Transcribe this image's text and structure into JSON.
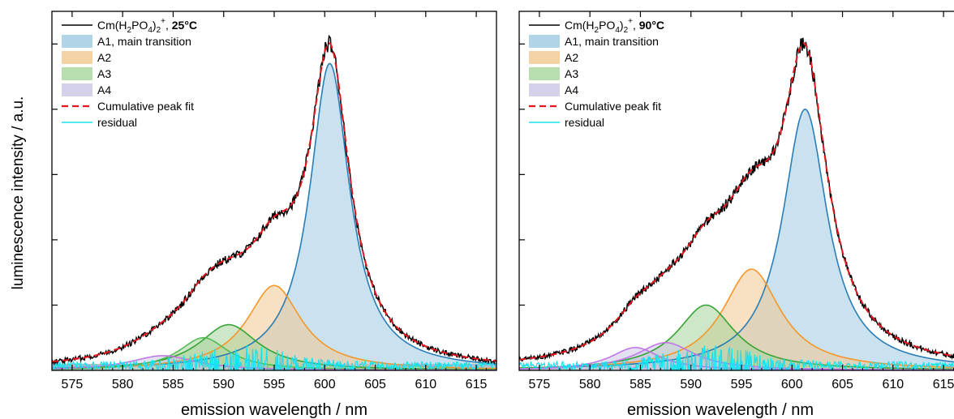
{
  "figure": {
    "ylabel": "luminescence intensity / a.u."
  },
  "chart_data": [
    {
      "type": "line",
      "title": "Cm(H₂PO₄)₂⁺, 25°C",
      "legend": {
        "placement": "top-left",
        "entries": [
          {
            "key": "meas",
            "label_html": [
              "Cm(H",
              "2",
              "PO",
              "4",
              ")",
              "2",
              "+",
              ", ",
              "25°C"
            ],
            "style": "line",
            "color": "#000000"
          },
          {
            "key": "A1",
            "label": "A1, main transition",
            "style": "patch",
            "color": "#9ecae1"
          },
          {
            "key": "A2",
            "label": "A2",
            "style": "patch",
            "color": "#f0c890"
          },
          {
            "key": "A3",
            "label": "A3",
            "style": "patch",
            "color": "#a6d49a"
          },
          {
            "key": "A4",
            "label": "A4",
            "style": "patch",
            "color": "#ccc6e6"
          },
          {
            "key": "fit",
            "label": "Cumulative peak fit",
            "style": "dash",
            "color": "#e8141c"
          },
          {
            "key": "res",
            "label": "residual",
            "style": "line",
            "color": "#19e0f0"
          }
        ]
      },
      "xlabel": "emission wavelength / nm",
      "xlim": [
        573,
        617
      ],
      "ylim": [
        0,
        1.1
      ],
      "xticks": [
        "575",
        "580",
        "585",
        "590",
        "595",
        "600",
        "605",
        "610",
        "615"
      ],
      "yaxis": "unlabeled ticks only",
      "peaks": [
        {
          "name": "A1",
          "center": 600.5,
          "height": 0.94,
          "width": 2.4,
          "fill": "#9ecae1",
          "line": "#1f77b4"
        },
        {
          "name": "A2",
          "center": 595.0,
          "height": 0.26,
          "width": 3.3,
          "fill": "#f0c890",
          "line": "#f5921f"
        },
        {
          "name": "A3 (i)",
          "center": 590.5,
          "height": 0.14,
          "width": 3.6,
          "fill": "#a6d49a",
          "line": "#2ca02c"
        },
        {
          "name": "A3 (ii)",
          "center": 588.0,
          "height": 0.1,
          "width": 3.0,
          "fill": "#a6d49a",
          "line": "#4cb84c"
        },
        {
          "name": "A4",
          "center": 584.0,
          "height": 0.045,
          "width": 4.0,
          "fill": "#ccc6e6",
          "line": "#c070e8"
        }
      ],
      "measured_peak": {
        "x": 600.3,
        "y": 1.0
      },
      "residual_range": [
        -0.05,
        0.07
      ],
      "grey_band": true,
      "colors": {
        "measured": "#000000",
        "fit": "#e8141c",
        "residual": "#19e0f0",
        "band": "#aaaaaa"
      }
    },
    {
      "type": "line",
      "title": "Cm(H₂PO₄)₂⁺, 90°C",
      "legend": {
        "placement": "top-left",
        "entries": [
          {
            "key": "meas",
            "label_html": [
              "Cm(H",
              "2",
              "PO",
              "4",
              ")",
              "2",
              "+",
              ", ",
              "90°C"
            ],
            "style": "line",
            "color": "#000000"
          },
          {
            "key": "A1",
            "label": "A1, main transition",
            "style": "patch",
            "color": "#9ecae1"
          },
          {
            "key": "A2",
            "label": "A2",
            "style": "patch",
            "color": "#f0c890"
          },
          {
            "key": "A3",
            "label": "A3",
            "style": "patch",
            "color": "#a6d49a"
          },
          {
            "key": "A4",
            "label": "A4",
            "style": "patch",
            "color": "#ccc6e6"
          },
          {
            "key": "fit",
            "label": "Cumulative peak fit",
            "style": "dash",
            "color": "#e8141c"
          },
          {
            "key": "res",
            "label": "residual",
            "style": "line",
            "color": "#19e0f0"
          }
        ]
      },
      "xlabel": "emission wavelength / nm",
      "xlim": [
        573,
        617
      ],
      "ylim": [
        0,
        1.1
      ],
      "xticks": [
        "575",
        "580",
        "585",
        "590",
        "595",
        "600",
        "605",
        "610",
        "615"
      ],
      "yaxis": "unlabeled ticks only",
      "peaks": [
        {
          "name": "A1",
          "center": 601.3,
          "height": 0.8,
          "width": 2.7,
          "fill": "#9ecae1",
          "line": "#1f77b4"
        },
        {
          "name": "A2",
          "center": 596.0,
          "height": 0.31,
          "width": 3.5,
          "fill": "#f0c890",
          "line": "#f5921f"
        },
        {
          "name": "A3",
          "center": 591.5,
          "height": 0.2,
          "width": 3.5,
          "fill": "#a6d49a",
          "line": "#2ca02c"
        },
        {
          "name": "A4",
          "center": 587.5,
          "height": 0.085,
          "width": 3.5,
          "fill": "#ccc6e6",
          "line": "#c070e8"
        },
        {
          "name": "A4 (ii)",
          "center": 584.5,
          "height": 0.07,
          "width": 3.0,
          "fill": "#ccc6e6",
          "line": "#c070e8"
        }
      ],
      "measured_peak": {
        "x": 601.0,
        "y": 1.0
      },
      "residual_range": [
        -0.04,
        0.08
      ],
      "grey_band": false,
      "colors": {
        "measured": "#000000",
        "fit": "#e8141c",
        "residual": "#19e0f0",
        "band": "#aaaaaa"
      }
    }
  ]
}
